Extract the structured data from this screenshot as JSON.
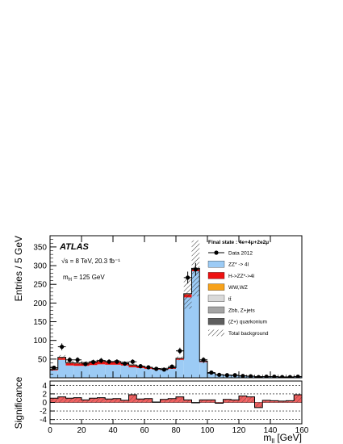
{
  "colors": {
    "zz": "#9ccbf5",
    "higgs": "#ee1111",
    "wwwz": "#f7a21b",
    "ttbar": "#d9d9d9",
    "zbb": "#a4a4a4",
    "quarkonium": "#5e5e5e",
    "data": "#000000",
    "significance_fill": "#f06060"
  },
  "chart_data": {
    "type": "bar",
    "title": "",
    "annotations": {
      "experiment": "ATLAS",
      "energy": "√s = 8 TeV, 20.3 fb⁻¹",
      "mass": "m_H = 125 GeV"
    },
    "legend": {
      "header": "Final state : 4e+4μ+2e2μ",
      "placement": "top-right",
      "entries": [
        "Data 2012",
        "ZZ* -> 4l",
        "H->ZZ*->4l",
        "WW,WZ",
        "tt̄",
        "Zbb, Z+jets",
        "(Z+) quarkonium",
        "Total background"
      ]
    },
    "x_bins_edges": [
      0,
      5,
      10,
      15,
      20,
      25,
      30,
      35,
      40,
      45,
      50,
      55,
      60,
      65,
      70,
      75,
      80,
      85,
      90,
      95,
      100,
      105,
      110,
      115,
      120,
      125,
      130,
      135,
      140,
      145,
      150,
      155,
      160
    ],
    "xlabel": "m_ll [GeV]",
    "xlim": [
      0,
      160
    ],
    "xticks": [
      0,
      20,
      40,
      60,
      80,
      100,
      120,
      140,
      160
    ],
    "main_panel": {
      "ylabel": "Entries / 5 GeV",
      "ylim": [
        0,
        380
      ],
      "yticks": [
        50,
        100,
        150,
        200,
        250,
        300,
        350
      ],
      "series": [
        {
          "name": "ZZ* -> 4l",
          "values": [
            20,
            48,
            33,
            32,
            32,
            34,
            36,
            35,
            35,
            33,
            28,
            26,
            24,
            22,
            21,
            24,
            48,
            215,
            285,
            42,
            12,
            8,
            7,
            6,
            5,
            4,
            3,
            3,
            3,
            2,
            2,
            3
          ]
        },
        {
          "name": "H->ZZ*->4l",
          "values": [
            2,
            5,
            6,
            6,
            7,
            7,
            8,
            7,
            7,
            6,
            5,
            4,
            3,
            2,
            2,
            2,
            3,
            8,
            6,
            2,
            0,
            0,
            0,
            0,
            0,
            0,
            0,
            0,
            0,
            0,
            0,
            0
          ]
        },
        {
          "name": "WW,WZ",
          "values": [
            0.4,
            0.6,
            0.6,
            0.6,
            0.6,
            0.6,
            0.5,
            0.5,
            0.5,
            0.5,
            0.4,
            0.4,
            0.4,
            0.3,
            0.3,
            0.3,
            0.3,
            0.4,
            0.4,
            0.2,
            0.1,
            0.1,
            0.1,
            0.1,
            0.1,
            0.1,
            0.1,
            0.1,
            0.1,
            0.1,
            0.1,
            0.1
          ]
        },
        {
          "name": "tt̄",
          "values": [
            0.3,
            0.4,
            0.4,
            0.4,
            0.4,
            0.4,
            0.3,
            0.3,
            0.3,
            0.3,
            0.3,
            0.3,
            0.2,
            0.2,
            0.2,
            0.2,
            0.2,
            0.3,
            0.3,
            0.1,
            0.1,
            0.1,
            0.1,
            0.1,
            0.1,
            0.1,
            0.1,
            0.1,
            0.1,
            0.1,
            0.1,
            0.1
          ]
        },
        {
          "name": "Zbb, Z+jets",
          "values": [
            0.5,
            0.8,
            0.8,
            0.8,
            0.8,
            0.8,
            0.7,
            0.7,
            0.7,
            0.6,
            0.6,
            0.5,
            0.5,
            0.4,
            0.4,
            0.4,
            0.5,
            1,
            1,
            0.3,
            0.1,
            0.1,
            0.1,
            0.1,
            0.1,
            0.1,
            0.1,
            0.1,
            0.1,
            0.1,
            0.1,
            0.1
          ]
        },
        {
          "name": "(Z+) quarkonium",
          "values": [
            0,
            0,
            0,
            0,
            0,
            0,
            0,
            0,
            0,
            0,
            0,
            0,
            0,
            0,
            0,
            0,
            0,
            0,
            0,
            0,
            0,
            0,
            0,
            0,
            0,
            0,
            0,
            0,
            0,
            0,
            0,
            0
          ]
        }
      ],
      "total_background_uncertainty": [
        3,
        6,
        4,
        4,
        4,
        4,
        4,
        4,
        4,
        4,
        3,
        3,
        3,
        3,
        3,
        3,
        5,
        40,
        75,
        6,
        2,
        1,
        1,
        1,
        1,
        1,
        1,
        1,
        1,
        1,
        1,
        1
      ],
      "data": {
        "name": "Data 2012",
        "values": [
          27,
          83,
          48,
          48,
          37,
          42,
          46,
          43,
          43,
          38,
          43,
          31,
          28,
          24,
          22,
          30,
          72,
          268,
          290,
          48,
          14,
          8,
          7,
          7,
          5,
          4,
          2,
          3,
          3,
          2,
          2,
          3
        ],
        "errors": [
          5,
          9,
          7,
          7,
          6,
          6.5,
          7,
          6.5,
          6.5,
          6,
          6.5,
          5.5,
          5.3,
          5,
          4.7,
          5.5,
          8.5,
          16,
          17,
          7,
          3.7,
          2.8,
          2.6,
          2.6,
          2.2,
          2,
          1.4,
          1.7,
          1.7,
          1.4,
          1.4,
          1.7
        ]
      }
    },
    "significance_panel": {
      "ylabel": "Significance",
      "ylim": [
        -5,
        5
      ],
      "yticks": [
        -4,
        -2,
        0,
        2,
        4
      ],
      "values": [
        1.0,
        1.3,
        1.0,
        1.1,
        0.6,
        1.0,
        1.1,
        0.8,
        0.9,
        0.5,
        1.8,
        0.8,
        0.9,
        0.1,
        0.7,
        0.9,
        1.3,
        0.6,
        -0.1,
        0.6,
        0.6,
        -0.2,
        0.7,
        0.6,
        1.5,
        1.3,
        -1.2,
        0.5,
        0.4,
        0.3,
        0.4,
        1.8
      ]
    }
  }
}
